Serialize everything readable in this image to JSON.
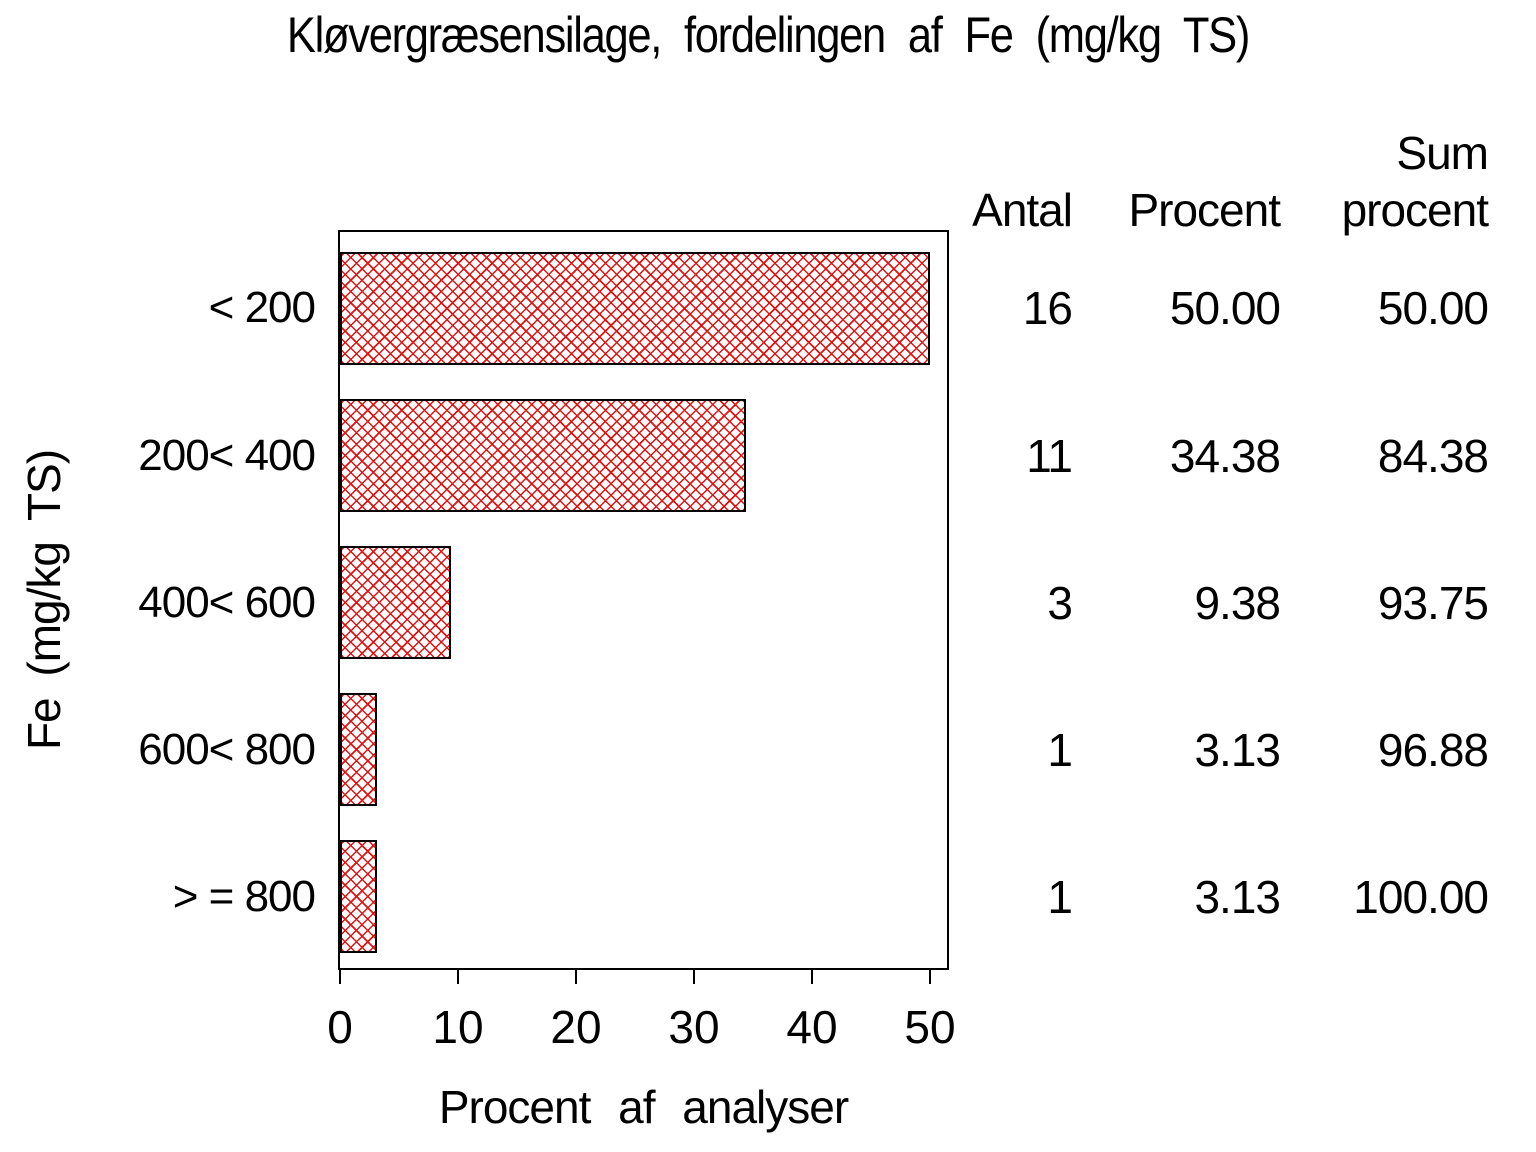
{
  "chart_data": {
    "type": "bar",
    "orientation": "horizontal",
    "title": "Kløvergræsensilage, fordelingen af Fe (mg/kg TS)",
    "xlabel": "Procent af analyser",
    "ylabel": "Fe (mg/kg TS)",
    "categories": [
      "< 200",
      "200< 400",
      "400< 600",
      "600< 800",
      "> = 800"
    ],
    "values": [
      50.0,
      34.38,
      9.38,
      3.13,
      3.13
    ],
    "counts": [
      16,
      11,
      3,
      1,
      1
    ],
    "cum_percent": [
      50.0,
      84.38,
      93.75,
      96.88,
      100.0
    ],
    "xlim": [
      0,
      50
    ],
    "xticks": [
      0,
      10,
      20,
      30,
      40,
      50
    ],
    "grid": false,
    "legend": "none",
    "bar_fill_pattern": "crosshatch",
    "bar_pattern_color": "#e01212",
    "bar_border_color": "#000000",
    "background_color": "#ffffff",
    "text_color": "#000000"
  },
  "table": {
    "headers": {
      "antal": "Antal",
      "procent": "Procent",
      "sum_line1": "Sum",
      "sum_line2": "procent"
    },
    "rows": [
      {
        "antal": "16",
        "procent": "50.00",
        "sum": "50.00"
      },
      {
        "antal": "11",
        "procent": "34.38",
        "sum": "84.38"
      },
      {
        "antal": "3",
        "procent": "9.38",
        "sum": "93.75"
      },
      {
        "antal": "1",
        "procent": "3.13",
        "sum": "96.88"
      },
      {
        "antal": "1",
        "procent": "3.13",
        "sum": "100.00"
      }
    ]
  }
}
